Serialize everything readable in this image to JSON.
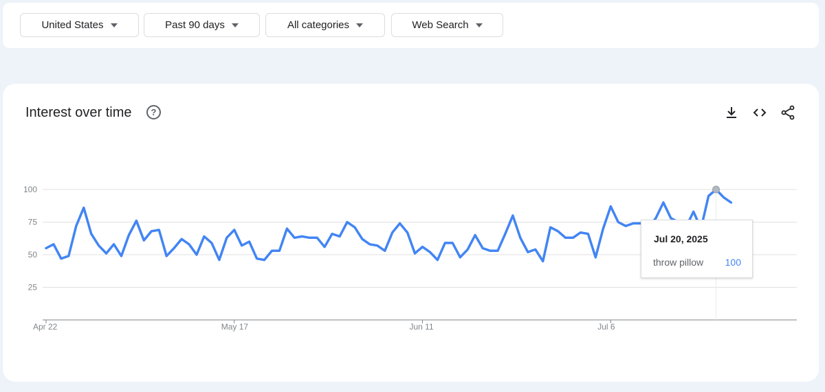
{
  "filters": [
    {
      "label": "United States"
    },
    {
      "label": "Past 90 days"
    },
    {
      "label": "All categories"
    },
    {
      "label": "Web Search"
    }
  ],
  "card": {
    "title": "Interest over time",
    "help_icon": "help-circle-icon",
    "actions": [
      "download-icon",
      "embed-code-icon",
      "share-icon"
    ]
  },
  "tooltip": {
    "date": "Jul 20, 2025",
    "term": "throw pillow",
    "value": "100"
  },
  "chart_data": {
    "type": "line",
    "x_start": "Apr 22",
    "x_labels": [
      {
        "label": "Apr 22",
        "index": 0
      },
      {
        "label": "May 17",
        "index": 25
      },
      {
        "label": "Jun 11",
        "index": 50
      },
      {
        "label": "Jul 6",
        "index": 75
      }
    ],
    "y_ticks": [
      25,
      50,
      75,
      100
    ],
    "ylim": [
      0,
      100
    ],
    "series": [
      {
        "name": "throw pillow",
        "color": "#4285f4",
        "values": [
          55,
          58,
          47,
          49,
          72,
          86,
          66,
          57,
          51,
          58,
          49,
          65,
          76,
          61,
          68,
          69,
          49,
          55,
          62,
          58,
          50,
          64,
          59,
          46,
          63,
          69,
          57,
          60,
          47,
          46,
          53,
          53,
          70,
          63,
          64,
          63,
          63,
          56,
          66,
          64,
          75,
          71,
          62,
          58,
          57,
          53,
          67,
          74,
          67,
          51,
          56,
          52,
          46,
          59,
          59,
          48,
          54,
          65,
          55,
          53,
          53,
          66,
          80,
          63,
          52,
          54,
          45,
          71,
          68,
          63,
          63,
          67,
          66,
          48,
          70,
          87,
          75,
          72,
          74,
          74,
          71,
          78,
          90,
          78,
          75,
          71,
          83,
          70,
          95,
          100,
          94,
          90
        ]
      }
    ],
    "highlight_index": 89,
    "grid": true,
    "legend": "none"
  }
}
